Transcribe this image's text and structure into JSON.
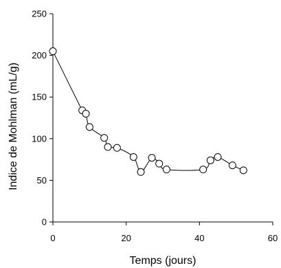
{
  "chart_data": {
    "type": "line",
    "title": "",
    "xlabel": "Temps (jours)",
    "ylabel": "Indice de Mohlman (mL/g)",
    "xlim": [
      0,
      60
    ],
    "ylim": [
      0,
      250
    ],
    "xticks": [
      0,
      20,
      40,
      60
    ],
    "yticks": [
      0,
      50,
      100,
      150,
      200,
      250
    ],
    "grid": false,
    "marker": "open-circle",
    "series": [
      {
        "x": [
          0,
          8,
          9,
          10,
          14,
          15,
          17.5,
          22,
          24,
          27,
          29,
          31,
          41,
          43,
          45,
          49,
          52
        ],
        "y": [
          205,
          134,
          130,
          114,
          101,
          90,
          89,
          78,
          60,
          77,
          70,
          63,
          63,
          74,
          78,
          68,
          62
        ]
      }
    ]
  }
}
